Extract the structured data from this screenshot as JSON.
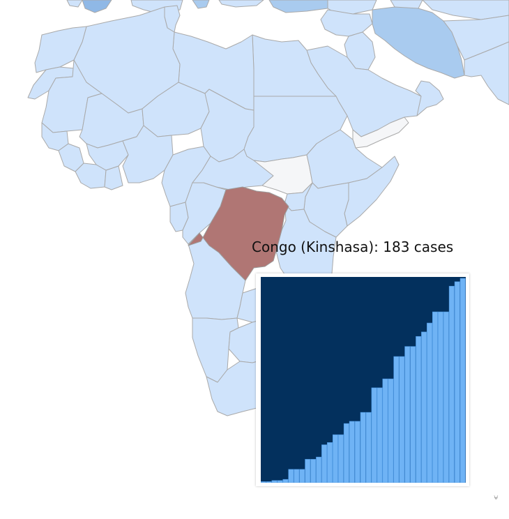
{
  "tooltip": {
    "country": "Congo (Kinshasa)",
    "text": "Congo (Kinshasa): 183 cases"
  },
  "colors": {
    "land": "#cfe3fb",
    "land_mid": "#a9cbef",
    "land_dark": "#8fb8e6",
    "no_data": "#f5f6f8",
    "selected": "#b07674",
    "spark_bg": "#03305d",
    "spark_bar": "#6fb3f5"
  },
  "chart_data": {
    "type": "bar",
    "title": "",
    "xlabel": "",
    "ylabel": "",
    "ylim": [
      0,
      183
    ],
    "values": [
      1,
      1,
      2,
      2,
      3,
      12,
      12,
      12,
      21,
      21,
      23,
      34,
      36,
      43,
      43,
      53,
      55,
      55,
      63,
      63,
      85,
      85,
      93,
      93,
      113,
      113,
      122,
      122,
      131,
      135,
      143,
      153,
      153,
      153,
      176,
      180,
      183
    ]
  },
  "icons": {
    "corner": "map-corner-icon"
  }
}
